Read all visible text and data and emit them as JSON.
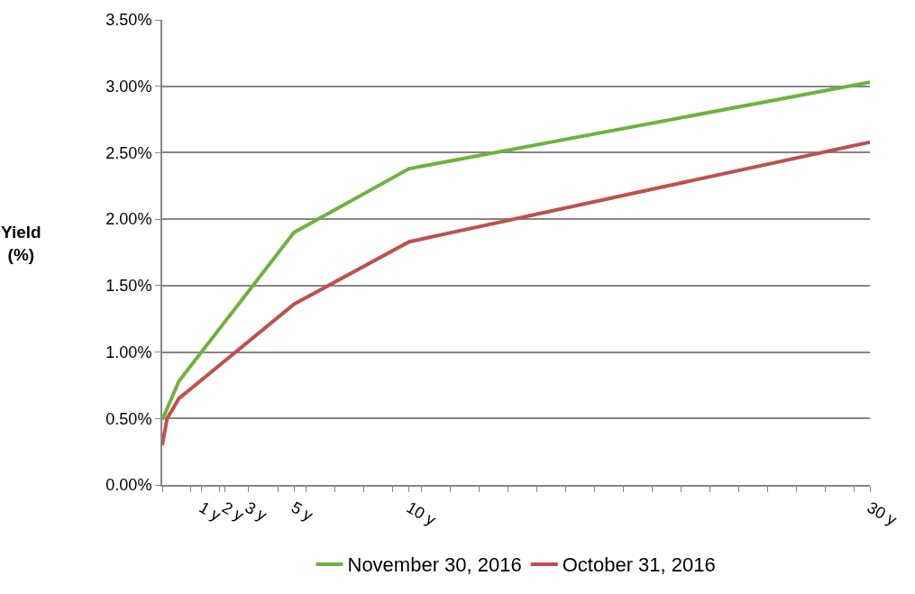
{
  "chart_data": {
    "type": "line",
    "ylabel": "Yield\n(%)",
    "xlim": [
      -0.72,
      30
    ],
    "xticks": [
      {
        "value": 1,
        "label": "1 y"
      },
      {
        "value": 2,
        "label": "2 y"
      },
      {
        "value": 3,
        "label": "3 y"
      },
      {
        "value": 5,
        "label": "5 y"
      },
      {
        "value": 10,
        "label": "10 y"
      },
      {
        "value": 30,
        "label": "30 y"
      },
      {
        "value": -0.72,
        "label": null
      },
      {
        "value": 0.53,
        "label": null
      },
      {
        "value": 1.78,
        "label": null
      },
      {
        "value": 3.03,
        "label": null
      },
      {
        "value": 4.29,
        "label": null
      },
      {
        "value": 5.54,
        "label": null
      },
      {
        "value": 6.79,
        "label": null
      },
      {
        "value": 8.04,
        "label": null
      },
      {
        "value": 9.29,
        "label": null
      },
      {
        "value": 10.54,
        "label": null
      },
      {
        "value": 11.8,
        "label": null
      },
      {
        "value": 13.05,
        "label": null
      },
      {
        "value": 14.3,
        "label": null
      },
      {
        "value": 15.55,
        "label": null
      },
      {
        "value": 16.8,
        "label": null
      },
      {
        "value": 18.05,
        "label": null
      },
      {
        "value": 19.31,
        "label": null
      },
      {
        "value": 20.56,
        "label": null
      },
      {
        "value": 21.81,
        "label": null
      },
      {
        "value": 23.06,
        "label": null
      },
      {
        "value": 24.31,
        "label": null
      },
      {
        "value": 25.56,
        "label": null
      },
      {
        "value": 26.82,
        "label": null
      },
      {
        "value": 28.07,
        "label": null
      },
      {
        "value": 29.32,
        "label": null
      }
    ],
    "ylim": [
      0,
      3.5
    ],
    "yticks": [
      {
        "value": 0,
        "label": "0.00%"
      },
      {
        "value": 0.5,
        "label": "0.50%"
      },
      {
        "value": 1,
        "label": "1.00%"
      },
      {
        "value": 1.5,
        "label": "1.50%"
      },
      {
        "value": 2,
        "label": "2.00%"
      },
      {
        "value": 2.5,
        "label": "2.50%"
      },
      {
        "value": 3,
        "label": "3.00%"
      },
      {
        "value": 3.5,
        "label": "3.50%"
      }
    ],
    "grid": "y",
    "legend": "bottom",
    "marker": "none",
    "line_style": "solid",
    "series": [
      {
        "name": "November 30, 2016",
        "color": "#6db33f",
        "x": [
          -0.72,
          0,
          5,
          10,
          30
        ],
        "values": [
          0.49,
          0.78,
          1.9,
          2.38,
          3.03
        ]
      },
      {
        "name": "October 31, 2016",
        "color": "#c0504d",
        "x": [
          -0.72,
          -0.51,
          0,
          5,
          10,
          30
        ],
        "values": [
          0.3,
          0.5,
          0.65,
          1.36,
          1.83,
          2.58
        ]
      }
    ]
  }
}
